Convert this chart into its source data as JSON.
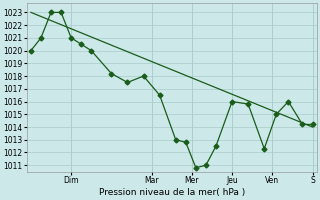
{
  "xlabel": "Pression niveau de la mer( hPa )",
  "bg_color": "#cce8e8",
  "grid_color": "#aacccc",
  "line_color": "#1a5c1a",
  "ylim_bottom": 1010.5,
  "ylim_top": 1023.7,
  "yticks": [
    1011,
    1012,
    1013,
    1014,
    1015,
    1016,
    1017,
    1018,
    1019,
    1020,
    1021,
    1022,
    1023
  ],
  "xlim_left": -0.1,
  "xlim_right": 7.1,
  "day_tick_pos": [
    1.0,
    3.0,
    4.0,
    5.0,
    6.0,
    7.0
  ],
  "day_labels": [
    "Dim",
    "Mar",
    "Mer",
    "Jeu",
    "Ven",
    "S"
  ],
  "x_data": [
    0.0,
    0.25,
    0.5,
    0.75,
    1.0,
    1.25,
    1.5,
    2.0,
    2.4,
    2.8,
    3.2,
    3.6,
    3.85,
    4.1,
    4.35,
    4.6,
    5.0,
    5.4,
    5.8,
    6.1,
    6.4,
    6.75,
    7.0
  ],
  "y_data": [
    1020.0,
    1021.0,
    1023.0,
    1023.0,
    1021.0,
    1020.5,
    1020.0,
    1018.2,
    1017.5,
    1018.0,
    1016.5,
    1013.0,
    1012.8,
    1010.8,
    1011.0,
    1012.5,
    1016.0,
    1015.8,
    1012.3,
    1015.0,
    1016.0,
    1014.2,
    1014.2
  ],
  "trend_x": [
    0.0,
    7.0
  ],
  "trend_y": [
    1023.0,
    1014.0
  ],
  "xlabel_fontsize": 6.5,
  "tick_fontsize": 5.5,
  "marker_size": 2.5,
  "line_width": 0.9
}
